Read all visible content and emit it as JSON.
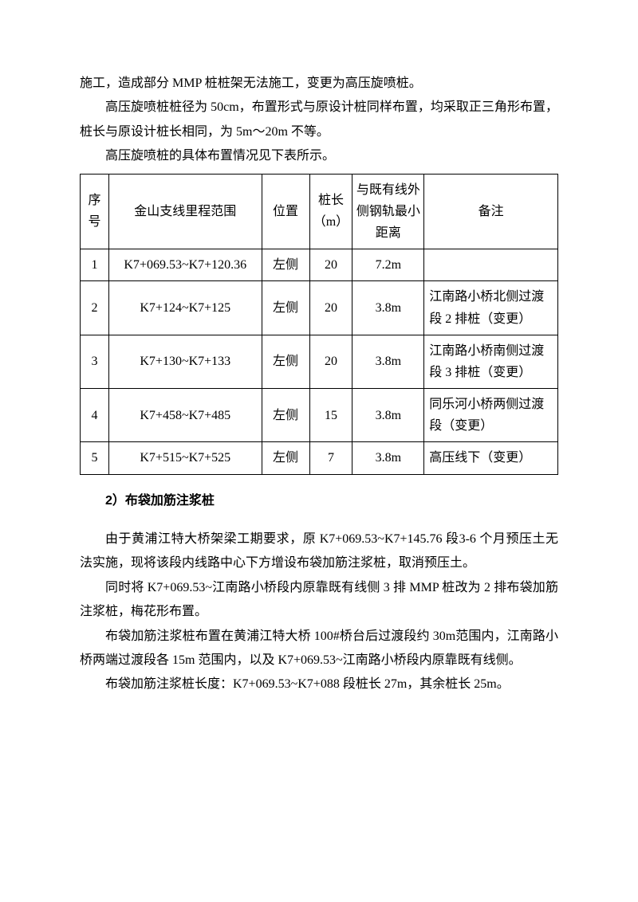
{
  "intro": {
    "p1": "施工，造成部分 MMP 桩桩架无法施工，变更为高压旋喷桩。",
    "p2": "高压旋喷桩桩径为 50cm，布置形式与原设计桩同样布置，均采取正三角形布置，桩长与原设计桩长相同，为 5m～20m 不等。",
    "p3": "高压旋喷桩的具体布置情况见下表所示。"
  },
  "table": {
    "headers": {
      "seq": "序号",
      "range": "金山支线里程范围",
      "pos": "位置",
      "len": "桩长（m）",
      "dist": "与既有线外侧钢轨最小距离",
      "note": "备注"
    },
    "rows": [
      {
        "seq": "1",
        "range": "K7+069.53~K7+120.36",
        "pos": "左侧",
        "len": "20",
        "dist": "7.2m",
        "note": ""
      },
      {
        "seq": "2",
        "range": "K7+124~K7+125",
        "pos": "左侧",
        "len": "20",
        "dist": "3.8m",
        "note": "江南路小桥北侧过渡段 2 排桩（变更）"
      },
      {
        "seq": "3",
        "range": "K7+130~K7+133",
        "pos": "左侧",
        "len": "20",
        "dist": "3.8m",
        "note": "江南路小桥南侧过渡段 3 排桩（变更）"
      },
      {
        "seq": "4",
        "range": "K7+458~K7+485",
        "pos": "左侧",
        "len": "15",
        "dist": "3.8m",
        "note": "同乐河小桥两侧过渡段（变更）"
      },
      {
        "seq": "5",
        "range": "K7+515~K7+525",
        "pos": "左侧",
        "len": "7",
        "dist": "3.8m",
        "note": "高压线下（变更）"
      }
    ]
  },
  "section2": {
    "heading": "2）布袋加筋注浆桩",
    "p1": "由于黄浦江特大桥架梁工期要求，原 K7+069.53~K7+145.76 段3-6 个月预压土无法实施，现将该段内线路中心下方增设布袋加筋注浆桩，取消预压土。",
    "p2": "同时将 K7+069.53~江南路小桥段内原靠既有线侧 3 排 MMP 桩改为 2 排布袋加筋注浆桩，梅花形布置。",
    "p3": "布袋加筋注浆桩布置在黄浦江特大桥 100#桥台后过渡段约 30m范围内，江南路小桥两端过渡段各 15m 范围内，以及 K7+069.53~江南路小桥段内原靠既有线侧。",
    "p4": "布袋加筋注浆桩长度：K7+069.53~K7+088 段桩长 27m，其余桩长 25m。"
  }
}
